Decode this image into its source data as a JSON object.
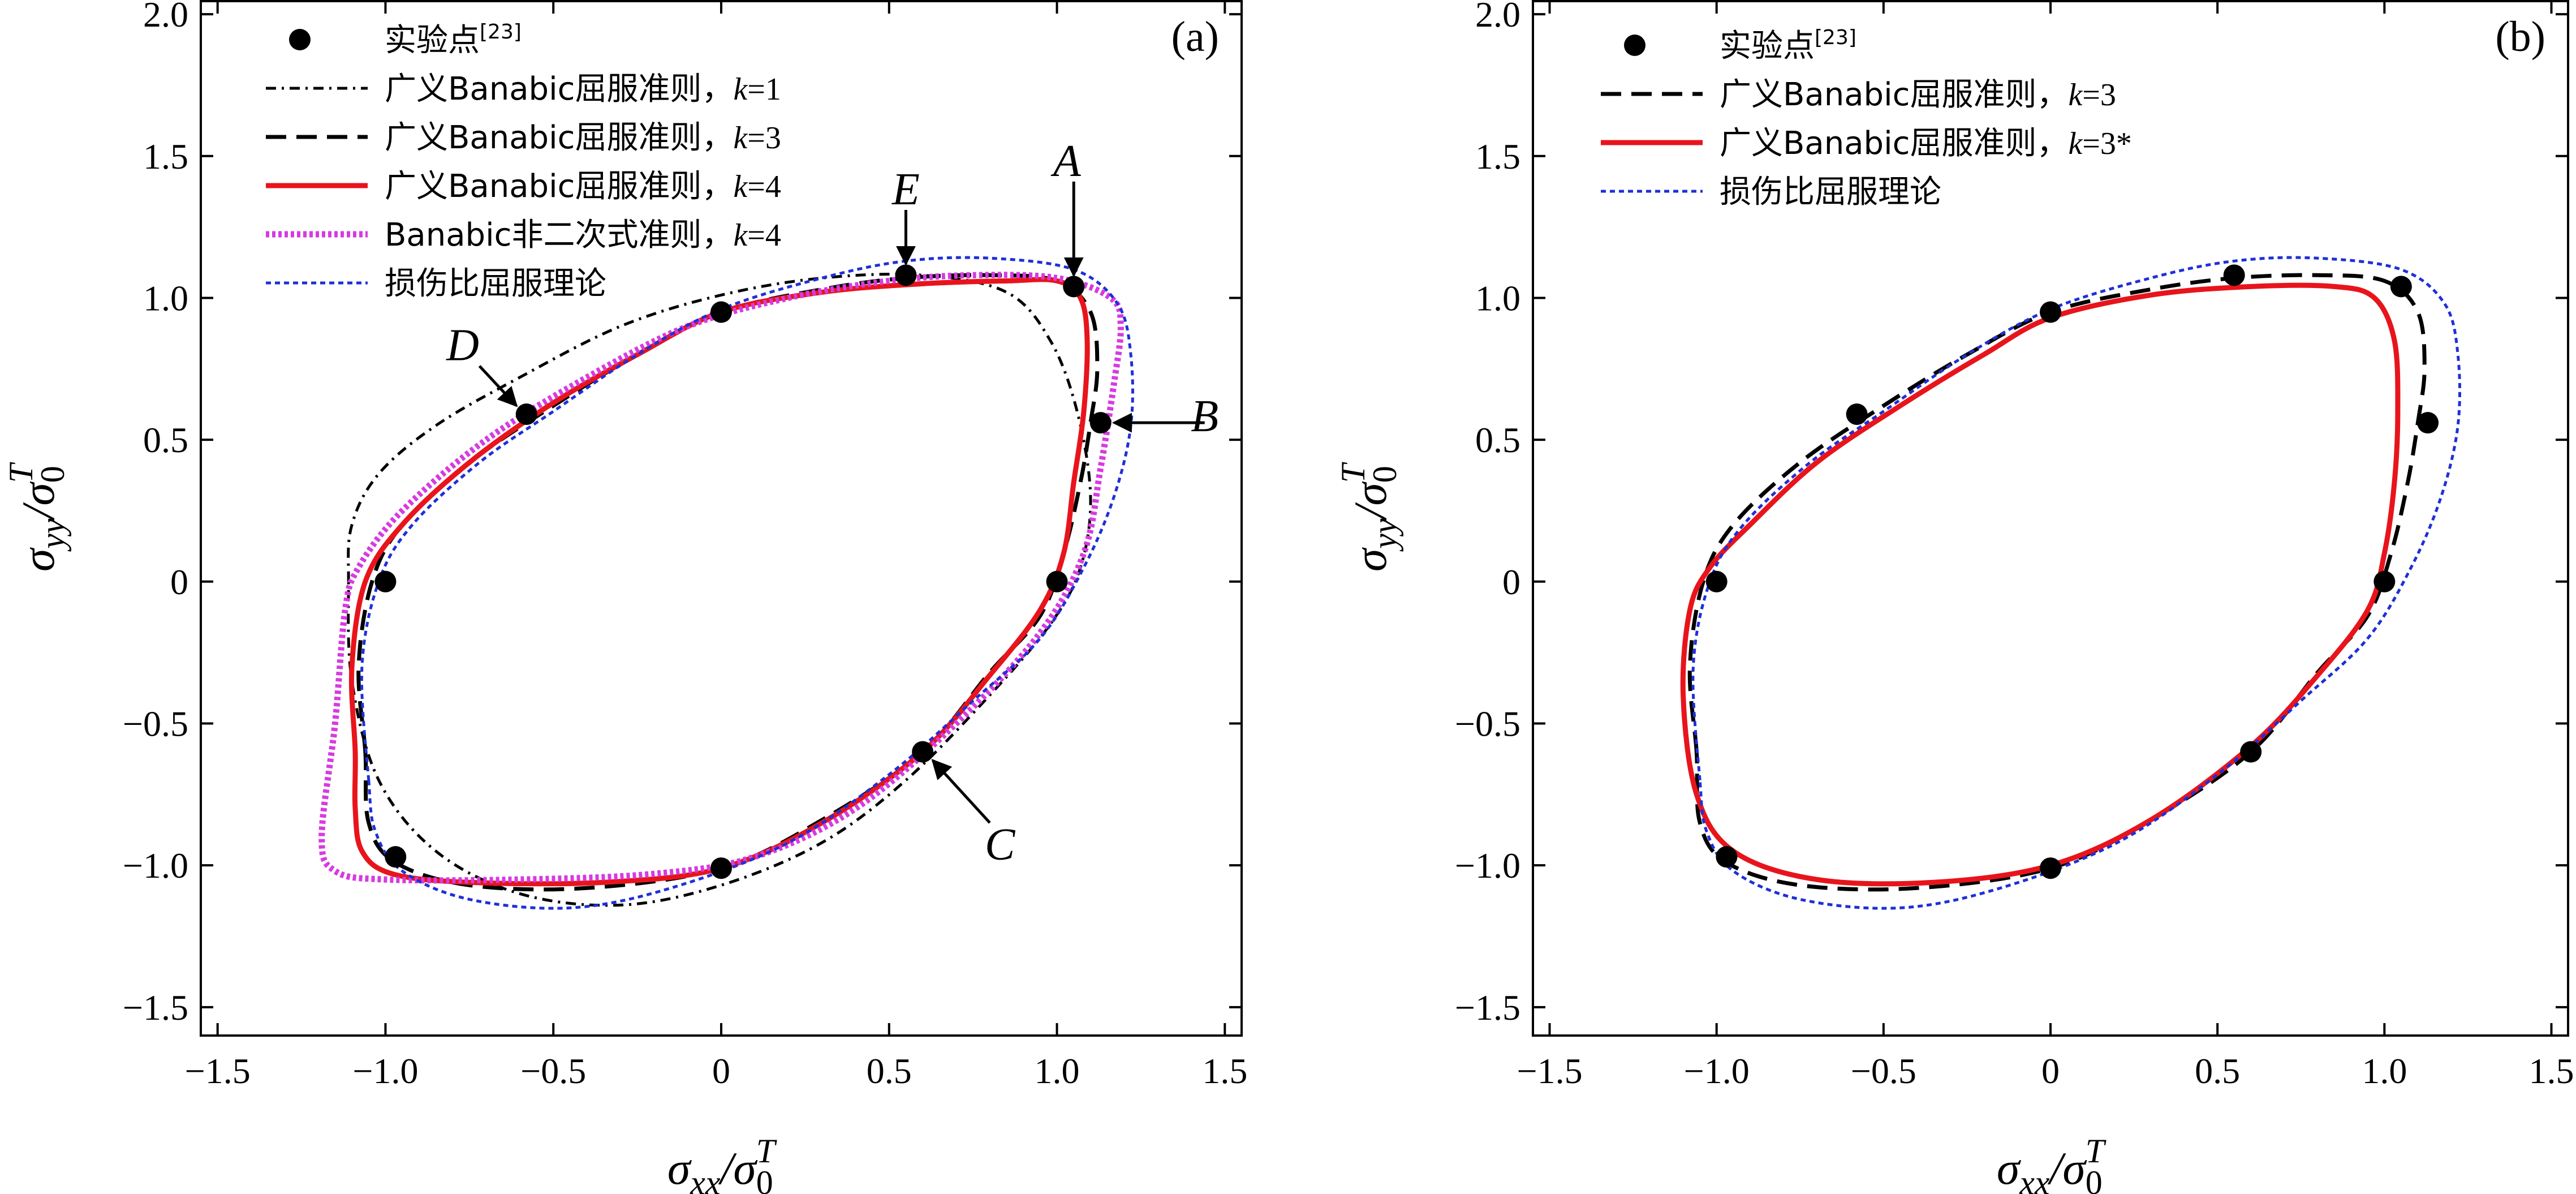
{
  "chart_data": [
    {
      "type": "line",
      "panel": "(a)",
      "xlabel": "σxx/σ0T",
      "ylabel": "σyy/σ0T",
      "xlim": [
        -1.55,
        1.55
      ],
      "ylim": [
        -1.6,
        2.05
      ],
      "xticks": [
        "−1.5",
        "−1.0",
        "−0.5",
        "0",
        "0.5",
        "1.0",
        "1.5"
      ],
      "yticks": [
        "−1.5",
        "−1.0",
        "−0.5",
        "0",
        "0.5",
        "1.0",
        "1.5",
        "2.0"
      ],
      "legend": [
        {
          "label": "实验点[23]",
          "style": "marker"
        },
        {
          "label": "广义Banabic屈服准则，k=1",
          "style": "dashdot",
          "color": "#000000"
        },
        {
          "label": "广义Banabic屈服准则，k=3",
          "style": "dashed",
          "color": "#000000"
        },
        {
          "label": "广义Banabic屈服准则，k=4",
          "style": "solid",
          "color": "#e8141c"
        },
        {
          "label": "Banabic非二次式准则，k=4",
          "style": "dotted-thick",
          "color": "#d63be0"
        },
        {
          "label": "损伤比屈服理论",
          "style": "dotted",
          "color": "#1f2fd8"
        }
      ],
      "experimental_points": [
        [
          0,
          0.95
        ],
        [
          0.55,
          1.08
        ],
        [
          1.05,
          1.04
        ],
        [
          1.13,
          0.56
        ],
        [
          1.0,
          0.0
        ],
        [
          0.6,
          -0.6
        ],
        [
          0,
          -1.01
        ],
        [
          -0.97,
          -0.97
        ],
        [
          -1.0,
          0.0
        ],
        [
          -0.58,
          0.59
        ]
      ],
      "annotations": [
        {
          "text": "A",
          "target": [
            1.05,
            1.04
          ]
        },
        {
          "text": "B",
          "target": [
            1.13,
            0.56
          ]
        },
        {
          "text": "C",
          "target": [
            0.6,
            -0.6
          ]
        },
        {
          "text": "D",
          "target": [
            -0.58,
            0.59
          ]
        },
        {
          "text": "E",
          "target": [
            0.55,
            1.08
          ]
        }
      ],
      "series": [
        {
          "name": "广义Banabic屈服准则，k=1",
          "style": "dashdot",
          "color": "#000000",
          "points": [
            [
              -1.11,
              0.0
            ],
            [
              -1.1,
              0.2
            ],
            [
              -1.02,
              0.38
            ],
            [
              -0.85,
              0.55
            ],
            [
              -0.6,
              0.72
            ],
            [
              -0.3,
              0.9
            ],
            [
              0.0,
              1.01
            ],
            [
              0.3,
              1.07
            ],
            [
              0.6,
              1.08
            ],
            [
              0.85,
              1.02
            ],
            [
              0.98,
              0.85
            ],
            [
              1.06,
              0.6
            ],
            [
              1.1,
              0.3
            ],
            [
              1.07,
              0.05
            ],
            [
              0.98,
              -0.15
            ],
            [
              0.8,
              -0.4
            ],
            [
              0.55,
              -0.7
            ],
            [
              0.3,
              -0.92
            ],
            [
              0.0,
              -1.07
            ],
            [
              -0.3,
              -1.14
            ],
            [
              -0.6,
              -1.1
            ],
            [
              -0.85,
              -0.95
            ],
            [
              -1.02,
              -0.7
            ],
            [
              -1.1,
              -0.35
            ]
          ]
        },
        {
          "name": "广义Banabic屈服准则，k=3",
          "style": "dashed",
          "color": "#000000",
          "points": [
            [
              -1.06,
              -0.6
            ],
            [
              -1.08,
              -0.3
            ],
            [
              -1.04,
              0.0
            ],
            [
              -0.95,
              0.2
            ],
            [
              -0.75,
              0.42
            ],
            [
              -0.5,
              0.62
            ],
            [
              -0.25,
              0.8
            ],
            [
              0.0,
              0.95
            ],
            [
              0.3,
              1.03
            ],
            [
              0.55,
              1.07
            ],
            [
              0.8,
              1.08
            ],
            [
              1.0,
              1.06
            ],
            [
              1.1,
              0.95
            ],
            [
              1.12,
              0.75
            ],
            [
              1.1,
              0.56
            ],
            [
              1.07,
              0.35
            ],
            [
              1.02,
              0.1
            ],
            [
              0.95,
              -0.12
            ],
            [
              0.8,
              -0.32
            ],
            [
              0.6,
              -0.6
            ],
            [
              0.3,
              -0.84
            ],
            [
              0.0,
              -1.01
            ],
            [
              -0.4,
              -1.08
            ],
            [
              -0.75,
              -1.07
            ],
            [
              -0.97,
              -0.99
            ],
            [
              -1.05,
              -0.85
            ]
          ]
        },
        {
          "name": "广义Banabic屈服准则，k=4",
          "style": "solid",
          "color": "#e8141c",
          "points": [
            [
              -1.09,
              -0.6
            ],
            [
              -1.1,
              -0.3
            ],
            [
              -1.06,
              0.0
            ],
            [
              -0.95,
              0.2
            ],
            [
              -0.75,
              0.42
            ],
            [
              -0.5,
              0.63
            ],
            [
              -0.25,
              0.8
            ],
            [
              0.0,
              0.95
            ],
            [
              0.3,
              1.02
            ],
            [
              0.6,
              1.05
            ],
            [
              0.85,
              1.06
            ],
            [
              1.0,
              1.06
            ],
            [
              1.07,
              1.0
            ],
            [
              1.09,
              0.85
            ],
            [
              1.08,
              0.6
            ],
            [
              1.05,
              0.35
            ],
            [
              1.02,
              0.1
            ],
            [
              0.95,
              -0.1
            ],
            [
              0.8,
              -0.33
            ],
            [
              0.6,
              -0.6
            ],
            [
              0.3,
              -0.85
            ],
            [
              0.0,
              -1.01
            ],
            [
              -0.35,
              -1.06
            ],
            [
              -0.75,
              -1.06
            ],
            [
              -0.98,
              -1.03
            ],
            [
              -1.07,
              -0.95
            ],
            [
              -1.09,
              -0.8
            ]
          ]
        },
        {
          "name": "Banabic非二次式准则，k=4",
          "style": "dotted-thick",
          "color": "#d63be0",
          "points": [
            [
              -1.12,
              -0.1
            ],
            [
              -1.15,
              -0.5
            ],
            [
              -1.19,
              -0.9
            ],
            [
              -1.15,
              -1.02
            ],
            [
              -1.0,
              -1.05
            ],
            [
              -0.6,
              -1.05
            ],
            [
              -0.2,
              -1.03
            ],
            [
              0.1,
              -0.97
            ],
            [
              0.4,
              -0.8
            ],
            [
              0.7,
              -0.5
            ],
            [
              0.95,
              -0.18
            ],
            [
              1.08,
              0.1
            ],
            [
              1.13,
              0.4
            ],
            [
              1.17,
              0.7
            ],
            [
              1.19,
              0.9
            ],
            [
              1.16,
              1.0
            ],
            [
              1.0,
              1.07
            ],
            [
              0.75,
              1.08
            ],
            [
              0.5,
              1.06
            ],
            [
              0.2,
              1.0
            ],
            [
              -0.1,
              0.9
            ],
            [
              -0.4,
              0.72
            ],
            [
              -0.7,
              0.5
            ],
            [
              -0.95,
              0.25
            ],
            [
              -1.08,
              0.05
            ]
          ]
        },
        {
          "name": "损伤比屈服理论",
          "style": "dotted",
          "color": "#1f2fd8",
          "points": [
            [
              -1.05,
              -0.7
            ],
            [
              -1.07,
              -0.3
            ],
            [
              -1.02,
              0.0
            ],
            [
              -0.92,
              0.2
            ],
            [
              -0.72,
              0.42
            ],
            [
              -0.5,
              0.6
            ],
            [
              -0.25,
              0.8
            ],
            [
              0.0,
              0.96
            ],
            [
              0.3,
              1.07
            ],
            [
              0.55,
              1.13
            ],
            [
              0.8,
              1.14
            ],
            [
              1.05,
              1.1
            ],
            [
              1.18,
              0.98
            ],
            [
              1.22,
              0.8
            ],
            [
              1.22,
              0.55
            ],
            [
              1.17,
              0.3
            ],
            [
              1.08,
              0.05
            ],
            [
              0.95,
              -0.2
            ],
            [
              0.75,
              -0.42
            ],
            [
              0.5,
              -0.68
            ],
            [
              0.2,
              -0.92
            ],
            [
              -0.15,
              -1.08
            ],
            [
              -0.45,
              -1.15
            ],
            [
              -0.75,
              -1.12
            ],
            [
              -0.95,
              -1.02
            ],
            [
              -1.03,
              -0.88
            ]
          ]
        }
      ]
    },
    {
      "type": "line",
      "panel": "(b)",
      "xlabel": "σxx/σ0T",
      "ylabel": "σyy/σ0T",
      "xlim": [
        -1.55,
        1.55
      ],
      "ylim": [
        -1.6,
        2.05
      ],
      "xticks": [
        "−1.5",
        "−1.0",
        "−0.5",
        "0",
        "0.5",
        "1.0",
        "1.5"
      ],
      "yticks": [
        "−1.5",
        "−1.0",
        "−0.5",
        "0",
        "0.5",
        "1.0",
        "1.5",
        "2.0"
      ],
      "legend": [
        {
          "label": "实验点[23]",
          "style": "marker"
        },
        {
          "label": "广义Banabic屈服准则，k=3",
          "style": "dashed",
          "color": "#000000"
        },
        {
          "label": "广义Banabic屈服准则，k=3*",
          "style": "solid",
          "color": "#e8141c"
        },
        {
          "label": "损伤比屈服理论",
          "style": "dotted",
          "color": "#1f2fd8"
        }
      ],
      "experimental_points": [
        [
          0,
          0.95
        ],
        [
          0.55,
          1.08
        ],
        [
          1.05,
          1.04
        ],
        [
          1.13,
          0.56
        ],
        [
          1.0,
          0.0
        ],
        [
          0.6,
          -0.6
        ],
        [
          0,
          -1.01
        ],
        [
          -0.97,
          -0.97
        ],
        [
          -1.0,
          0.0
        ],
        [
          -0.58,
          0.59
        ]
      ],
      "series": [
        {
          "name": "广义Banabic屈服准则，k=3",
          "style": "dashed",
          "color": "#000000",
          "points": [
            [
              -1.06,
              -0.6
            ],
            [
              -1.08,
              -0.3
            ],
            [
              -1.04,
              0.0
            ],
            [
              -0.95,
              0.2
            ],
            [
              -0.75,
              0.42
            ],
            [
              -0.5,
              0.62
            ],
            [
              -0.25,
              0.8
            ],
            [
              0.0,
              0.95
            ],
            [
              0.3,
              1.03
            ],
            [
              0.55,
              1.07
            ],
            [
              0.8,
              1.08
            ],
            [
              1.0,
              1.06
            ],
            [
              1.1,
              0.95
            ],
            [
              1.12,
              0.75
            ],
            [
              1.1,
              0.56
            ],
            [
              1.07,
              0.35
            ],
            [
              1.02,
              0.1
            ],
            [
              0.95,
              -0.12
            ],
            [
              0.8,
              -0.32
            ],
            [
              0.6,
              -0.6
            ],
            [
              0.3,
              -0.84
            ],
            [
              0.0,
              -1.01
            ],
            [
              -0.4,
              -1.08
            ],
            [
              -0.75,
              -1.07
            ],
            [
              -0.97,
              -0.99
            ],
            [
              -1.05,
              -0.85
            ]
          ]
        },
        {
          "name": "广义Banabic屈服准则，k=3*",
          "style": "solid",
          "color": "#e8141c",
          "points": [
            [
              -1.1,
              -0.4
            ],
            [
              -1.08,
              -0.1
            ],
            [
              -1.02,
              0.05
            ],
            [
              -0.9,
              0.2
            ],
            [
              -0.7,
              0.42
            ],
            [
              -0.45,
              0.62
            ],
            [
              -0.2,
              0.8
            ],
            [
              0.0,
              0.93
            ],
            [
              0.3,
              1.01
            ],
            [
              0.6,
              1.04
            ],
            [
              0.85,
              1.04
            ],
            [
              0.97,
              1.0
            ],
            [
              1.03,
              0.85
            ],
            [
              1.04,
              0.6
            ],
            [
              1.03,
              0.35
            ],
            [
              1.0,
              0.1
            ],
            [
              0.95,
              -0.1
            ],
            [
              0.8,
              -0.33
            ],
            [
              0.6,
              -0.58
            ],
            [
              0.3,
              -0.84
            ],
            [
              0.0,
              -1.0
            ],
            [
              -0.35,
              -1.06
            ],
            [
              -0.7,
              -1.05
            ],
            [
              -0.95,
              -0.95
            ],
            [
              -1.06,
              -0.75
            ]
          ]
        },
        {
          "name": "损伤比屈服理论",
          "style": "dotted",
          "color": "#1f2fd8",
          "points": [
            [
              -1.05,
              -0.7
            ],
            [
              -1.07,
              -0.3
            ],
            [
              -1.02,
              0.0
            ],
            [
              -0.92,
              0.2
            ],
            [
              -0.72,
              0.42
            ],
            [
              -0.5,
              0.6
            ],
            [
              -0.25,
              0.8
            ],
            [
              0.0,
              0.96
            ],
            [
              0.3,
              1.07
            ],
            [
              0.55,
              1.13
            ],
            [
              0.8,
              1.14
            ],
            [
              1.05,
              1.1
            ],
            [
              1.18,
              0.98
            ],
            [
              1.22,
              0.8
            ],
            [
              1.22,
              0.55
            ],
            [
              1.17,
              0.3
            ],
            [
              1.08,
              0.05
            ],
            [
              0.95,
              -0.2
            ],
            [
              0.75,
              -0.42
            ],
            [
              0.5,
              -0.68
            ],
            [
              0.2,
              -0.92
            ],
            [
              -0.15,
              -1.08
            ],
            [
              -0.45,
              -1.15
            ],
            [
              -0.75,
              -1.12
            ],
            [
              -0.95,
              -1.02
            ],
            [
              -1.03,
              -0.88
            ]
          ]
        }
      ]
    }
  ]
}
